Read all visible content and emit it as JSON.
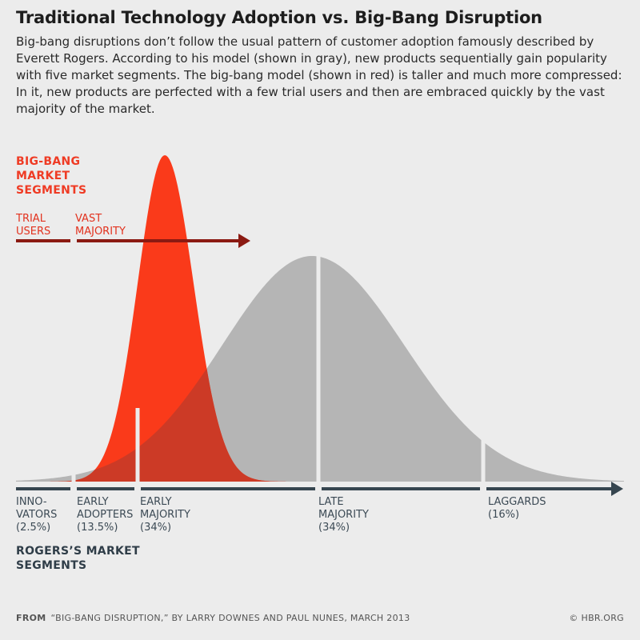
{
  "title": "Traditional Technology Adoption vs. Big-Bang Disruption",
  "description": "Big-bang disruptions don’t follow the usual pattern of customer adoption famously described by Everett Rogers. According to his model (shown in gray), new products sequentially gain popularity with five market segments. The big-bang model (shown in red) is taller and much more compressed: In it, new products are perfected with a few trial users and then are embraced quickly by the vast majority of the market.",
  "big_bang": {
    "heading": "BIG-BANG MARKET SEGMENTS",
    "segments": [
      {
        "label": "TRIAL USERS"
      },
      {
        "label": "VAST MAJORITY"
      }
    ]
  },
  "rogers": {
    "heading": "ROGERS’S MARKET SEGMENTS",
    "segments": [
      {
        "name": "INNO- VATORS",
        "pct": "(2.5%)"
      },
      {
        "name": "EARLY ADOPTERS",
        "pct": "(13.5%)"
      },
      {
        "name": "EARLY MAJORITY",
        "pct": "(34%)"
      },
      {
        "name": "LATE MAJORITY",
        "pct": "(34%)"
      },
      {
        "name": "LAGGARDS",
        "pct": "(16%)"
      }
    ]
  },
  "footer": {
    "from": "FROM",
    "source": "“BIG-BANG DISRUPTION,” BY LARRY DOWNES AND PAUL NUNES, MARCH 2013",
    "credit": "© HBR.ORG"
  },
  "colors": {
    "red_curve": "#fa3a1a",
    "gray_curve": "#b5b5b5",
    "overlap": "#cc3a26",
    "dark_arrow": "#36454f",
    "red_arrow": "#8b1a12",
    "background": "#ececec"
  }
}
